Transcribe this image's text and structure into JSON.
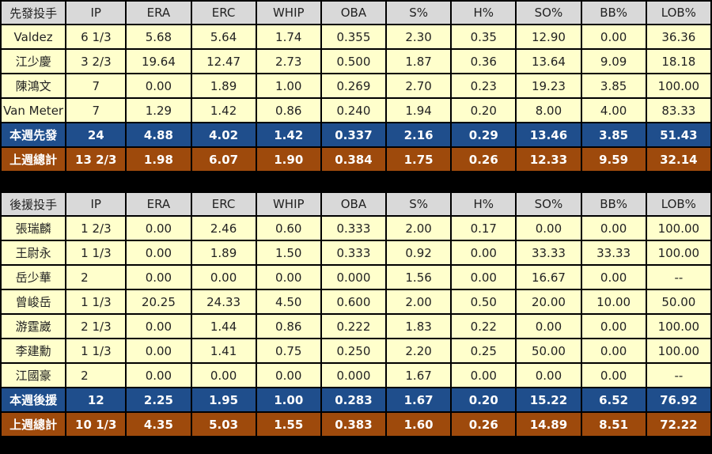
{
  "starters": {
    "headers": [
      "先發投手",
      "IP",
      "ERA",
      "ERC",
      "WHIP",
      "OBA",
      "S%",
      "H%",
      "SO%",
      "BB%",
      "LOB%"
    ],
    "rows": [
      [
        "Valdez",
        "6 1/3",
        "5.68",
        "5.64",
        "1.74",
        "0.355",
        "2.30",
        "0.35",
        "12.90",
        "0.00",
        "36.36"
      ],
      [
        "江少慶",
        "3 2/3",
        "19.64",
        "12.47",
        "2.73",
        "0.500",
        "1.87",
        "0.36",
        "13.64",
        "9.09",
        "18.18"
      ],
      [
        "陳鴻文",
        "7",
        "0.00",
        "1.89",
        "1.00",
        "0.269",
        "2.70",
        "0.23",
        "19.23",
        "3.85",
        "100.00"
      ],
      [
        "Van Meter",
        "7",
        "1.29",
        "1.42",
        "0.86",
        "0.240",
        "1.94",
        "0.20",
        "8.00",
        "4.00",
        "83.33"
      ]
    ],
    "week": [
      "本週先發",
      "24",
      "4.88",
      "4.02",
      "1.42",
      "0.337",
      "2.16",
      "0.29",
      "13.46",
      "3.85",
      "51.43"
    ],
    "last": [
      "上週總計",
      "13 2/3",
      "1.98",
      "6.07",
      "1.90",
      "0.384",
      "1.75",
      "0.26",
      "12.33",
      "9.59",
      "32.14"
    ]
  },
  "relievers": {
    "headers": [
      "後援投手",
      "IP",
      "ERA",
      "ERC",
      "WHIP",
      "OBA",
      "S%",
      "H%",
      "SO%",
      "BB%",
      "LOB%"
    ],
    "rows": [
      [
        "張瑞麟",
        "1 2/3",
        "0.00",
        "2.46",
        "0.60",
        "0.333",
        "2.00",
        "0.17",
        "0.00",
        "0.00",
        "100.00"
      ],
      [
        "王尉永",
        "1 1/3",
        "0.00",
        "1.89",
        "1.50",
        "0.333",
        "0.92",
        "0.00",
        "33.33",
        "33.33",
        "100.00"
      ],
      [
        "岳少華",
        "2",
        "0.00",
        "0.00",
        "0.00",
        "0.000",
        "1.56",
        "0.00",
        "16.67",
        "0.00",
        "--"
      ],
      [
        "曾峻岳",
        "1 1/3",
        "20.25",
        "24.33",
        "4.50",
        "0.600",
        "2.00",
        "0.50",
        "20.00",
        "10.00",
        "50.00"
      ],
      [
        "游霆崴",
        "2 1/3",
        "0.00",
        "1.44",
        "0.86",
        "0.222",
        "1.83",
        "0.22",
        "0.00",
        "0.00",
        "100.00"
      ],
      [
        "李建勳",
        "1 1/3",
        "0.00",
        "1.41",
        "0.75",
        "0.250",
        "2.20",
        "0.25",
        "50.00",
        "0.00",
        "100.00"
      ],
      [
        "江國豪",
        "2",
        "0.00",
        "0.00",
        "0.00",
        "0.000",
        "1.67",
        "0.00",
        "0.00",
        "0.00",
        "--"
      ]
    ],
    "week": [
      "本週後援",
      "12",
      "2.25",
      "1.95",
      "1.00",
      "0.283",
      "1.67",
      "0.20",
      "15.22",
      "6.52",
      "76.92"
    ],
    "last": [
      "上週總計",
      "10 1/3",
      "4.35",
      "5.03",
      "1.55",
      "0.383",
      "1.60",
      "0.26",
      "14.89",
      "8.51",
      "72.22"
    ]
  }
}
